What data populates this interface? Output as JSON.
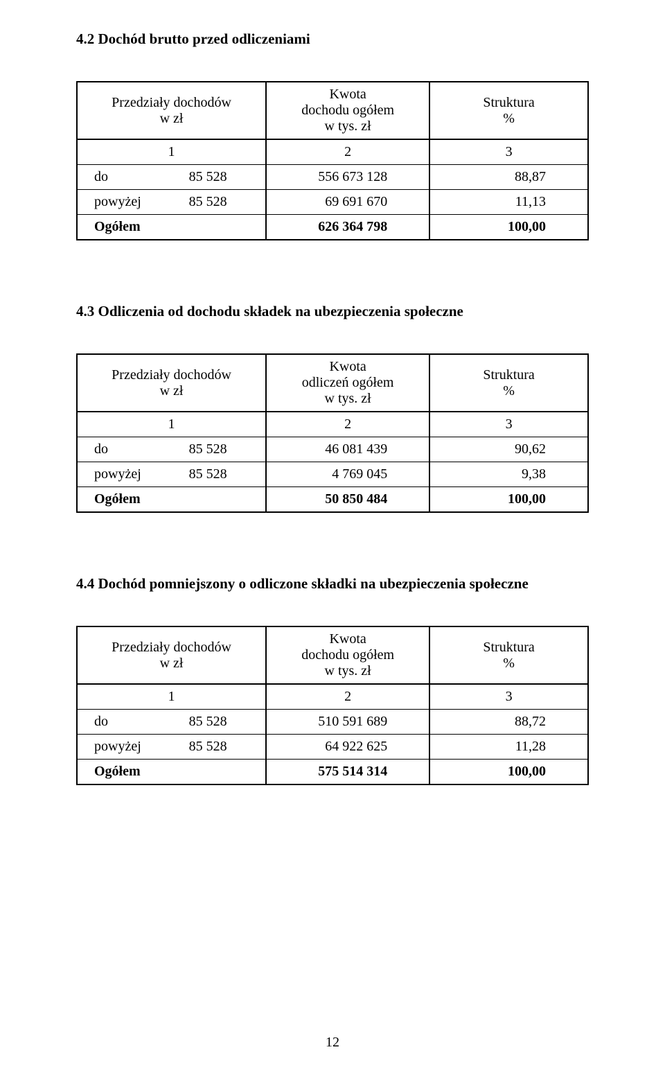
{
  "sections": [
    {
      "heading": "4.2 Dochód brutto przed odliczeniami",
      "header": {
        "col1": "Przedziały dochodów\nw zł",
        "col2": "Kwota\ndochodu ogółem\nw tys. zł",
        "col3": "Struktura\n%"
      },
      "numrow": [
        "1",
        "2",
        "3"
      ],
      "rows": [
        {
          "label": "do",
          "labelnum": "85 528",
          "value": "556 673 128",
          "pct": "88,87"
        },
        {
          "label": "powyżej",
          "labelnum": "85 528",
          "value": "69 691 670",
          "pct": "11,13"
        }
      ],
      "total": {
        "label": "Ogółem",
        "value": "626 364 798",
        "pct": "100,00"
      }
    },
    {
      "heading": "4.3 Odliczenia od dochodu składek na ubezpieczenia społeczne",
      "header": {
        "col1": "Przedziały dochodów\nw zł",
        "col2": "Kwota\nodliczeń ogółem\nw tys. zł",
        "col3": "Struktura\n%"
      },
      "numrow": [
        "1",
        "2",
        "3"
      ],
      "rows": [
        {
          "label": "do",
          "labelnum": "85 528",
          "value": "46 081 439",
          "pct": "90,62"
        },
        {
          "label": "powyżej",
          "labelnum": "85 528",
          "value": "4 769 045",
          "pct": "9,38"
        }
      ],
      "total": {
        "label": "Ogółem",
        "value": "50 850 484",
        "pct": "100,00"
      }
    },
    {
      "heading": "4.4 Dochód pomniejszony o odliczone składki na ubezpieczenia społeczne",
      "header": {
        "col1": "Przedziały dochodów\nw zł",
        "col2": "Kwota\ndochodu ogółem\nw tys. zł",
        "col3": "Struktura\n%"
      },
      "numrow": [
        "1",
        "2",
        "3"
      ],
      "rows": [
        {
          "label": "do",
          "labelnum": "85 528",
          "value": "510 591 689",
          "pct": "88,72"
        },
        {
          "label": "powyżej",
          "labelnum": "85 528",
          "value": "64 922 625",
          "pct": "11,28"
        }
      ],
      "total": {
        "label": "Ogółem",
        "value": "575 514 314",
        "pct": "100,00"
      }
    }
  ],
  "page_number": "12"
}
